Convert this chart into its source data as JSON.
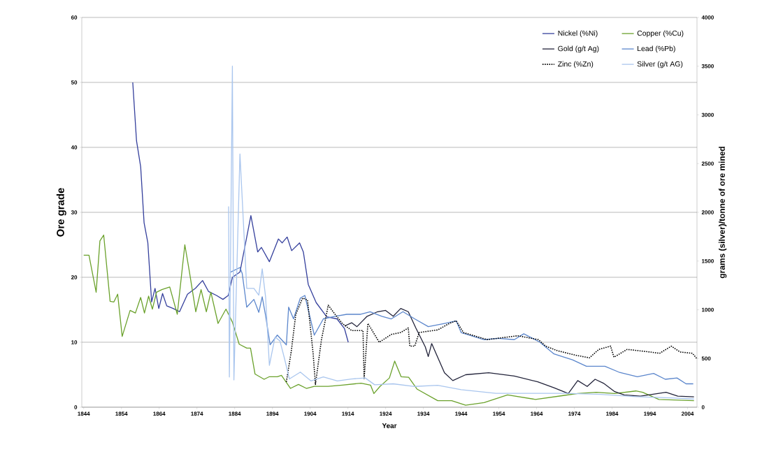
{
  "chart_data": {
    "type": "line",
    "xlabel": "Year",
    "ylabel": "Ore grade",
    "y2label": "grams (silver)/tonne of ore mined",
    "xlim": [
      1843.5,
      2006.5
    ],
    "xticks": [
      1844,
      1854,
      1864,
      1874,
      1884,
      1894,
      1904,
      1914,
      1924,
      1934,
      1944,
      1954,
      1964,
      1974,
      1984,
      1994,
      2004
    ],
    "ylim": [
      0,
      60
    ],
    "yticks": [
      0,
      10,
      20,
      30,
      40,
      50,
      60
    ],
    "y2lim": [
      0,
      4000
    ],
    "y2ticks": [
      0,
      500,
      1000,
      1500,
      2000,
      2500,
      3000,
      3500,
      4000
    ],
    "grid": "y",
    "legend": "top right",
    "line_style": "solid",
    "series": [
      {
        "name": "Nickel (%Ni)",
        "color": "#343f9c",
        "x": [
          1857,
          1858,
          1859.1,
          1860,
          1861,
          1862,
          1862.9,
          1863.9,
          1864.9,
          1866,
          1867.7,
          1869.4,
          1871.5,
          1873.6,
          1875.5,
          1877.1,
          1879.2,
          1880.9,
          1882.3,
          1883.4,
          1885.4,
          1888.3,
          1890.1,
          1891.1,
          1893.2,
          1895.6,
          1896.6,
          1897.9,
          1899.1,
          1901.2,
          1902.2,
          1903.5,
          1905.6,
          1908.4,
          1911.1,
          1913.1,
          1914.1
        ],
        "values": [
          50,
          41,
          37,
          28.4,
          25.3,
          16.2,
          18.3,
          15.2,
          17.5,
          15.6,
          15.2,
          14.7,
          17.4,
          18.3,
          19.5,
          17.8,
          17.2,
          16.6,
          17.2,
          20,
          20.8,
          29.5,
          23.9,
          24.6,
          22.4,
          25.9,
          25.3,
          26.2,
          24.1,
          25.3,
          23.9,
          18.9,
          16.1,
          13.9,
          13.6,
          12.1,
          10
        ]
      },
      {
        "name": "Copper (%Cu)",
        "color": "#6aa12b",
        "x": [
          1844,
          1845.4,
          1847.3,
          1848.3,
          1849.3,
          1851,
          1852,
          1853,
          1854.2,
          1856.3,
          1857.7,
          1859.1,
          1860.1,
          1861.2,
          1862.2,
          1863.3,
          1864.7,
          1866.8,
          1868.8,
          1870.8,
          1872,
          1873.7,
          1875.1,
          1876.5,
          1877.7,
          1879.6,
          1881.7,
          1883.4,
          1885.2,
          1887.2,
          1888.2,
          1889.4,
          1891.8,
          1893.2,
          1895.3,
          1896.4,
          1898.8,
          1900.9,
          1903,
          1905.1,
          1908.8,
          1912.5,
          1917.5,
          1920,
          1920.9,
          1922.5,
          1925,
          1926.4,
          1928.1,
          1930.1,
          1932.3,
          1937.8,
          1941.5,
          1945.2,
          1950.1,
          1956.3,
          1963.7,
          1971.1,
          1974.9,
          1979.8,
          1984.7,
          1990.3,
          1992.1,
          1996.4,
          2005.7
        ],
        "values": [
          23.4,
          23.4,
          17.7,
          25.6,
          26.5,
          16.3,
          16.2,
          17.4,
          10.9,
          14.9,
          14.5,
          16.9,
          14.5,
          17.1,
          15.1,
          17.7,
          18.1,
          18.5,
          14.3,
          25,
          20.9,
          14.7,
          18.1,
          14.7,
          17.7,
          12.9,
          15.1,
          13.1,
          9.7,
          9.1,
          9.1,
          5.1,
          4.3,
          4.7,
          4.7,
          4.9,
          2.9,
          3.5,
          2.9,
          3.2,
          3.2,
          3.4,
          3.7,
          3.4,
          2.1,
          3.2,
          4.5,
          7.1,
          4.7,
          4.6,
          2.8,
          1,
          1,
          0.3,
          0.7,
          1.9,
          1.2,
          1.8,
          2.1,
          2.3,
          2.1,
          2.5,
          2.3,
          1.2,
          1
        ]
      },
      {
        "name": "Gold (g/t Ag)",
        "color": "#22233a",
        "x": [
          1913.1,
          1915,
          1916.4,
          1919.1,
          1921.9,
          1924,
          1926,
          1928,
          1930,
          1932,
          1934.5,
          1935.3,
          1936.2,
          1939.6,
          1941.8,
          1945.2,
          1951.3,
          1958.1,
          1964.3,
          1968.6,
          1972.4,
          1974.9,
          1977.4,
          1979.5,
          1981.7,
          1984.7,
          1987.2,
          1991.5,
          1998.3,
          2001.4,
          2005.7
        ],
        "values": [
          12.5,
          13,
          12.4,
          14,
          14.7,
          14.9,
          14,
          15.2,
          14.7,
          12.2,
          9.3,
          7.8,
          9.8,
          5.3,
          4.1,
          5,
          5.3,
          4.8,
          3.9,
          3,
          2.1,
          4.1,
          3.2,
          4.3,
          3.7,
          2.4,
          1.9,
          1.7,
          2.3,
          1.7,
          1.6
        ]
      },
      {
        "name": "Lead (%Pb)",
        "color": "#5b86cc",
        "x": [
          1882.9,
          1885.4,
          1886,
          1887.2,
          1889.1,
          1890.4,
          1891.3,
          1892.2,
          1893.4,
          1895.3,
          1897.7,
          1898.3,
          1899.6,
          1901.4,
          1902.6,
          1905.1,
          1907.5,
          1910.6,
          1913.7,
          1917.4,
          1919.9,
          1923,
          1925.5,
          1928.6,
          1931.7,
          1935.3,
          1939.6,
          1942.7,
          1944,
          1950.1,
          1953.8,
          1958.1,
          1960.6,
          1964.9,
          1968.6,
          1973.5,
          1977.2,
          1982.1,
          1985.8,
          1990.7,
          1995,
          1998.1,
          2001.2,
          2003.6,
          2005.5
        ],
        "values": [
          20.8,
          21.5,
          20.6,
          15.4,
          16.6,
          14.6,
          17,
          14.1,
          9.6,
          11.1,
          9.6,
          15.4,
          13.6,
          16.8,
          17.2,
          11.1,
          13.6,
          14,
          14.3,
          14.3,
          14.7,
          14,
          13.6,
          14.7,
          13.6,
          12.4,
          12.9,
          13.3,
          11.5,
          10.4,
          10.6,
          10.4,
          11.3,
          10,
          8.2,
          7.3,
          6.3,
          6.3,
          5.4,
          4.7,
          5.2,
          4.3,
          4.5,
          3.6,
          3.6
        ]
      },
      {
        "name": "Zinc (%Zn)",
        "color": "#000000",
        "line_style": "dotted",
        "x": [
          1897.7,
          1899,
          1900.2,
          1902,
          1903.3,
          1904.8,
          1905.4,
          1907,
          1908.8,
          1910.6,
          1912.5,
          1915,
          1918,
          1918.3,
          1919.3,
          1922.3,
          1925.5,
          1928,
          1930,
          1930.4,
          1931.7,
          1932.9,
          1937.8,
          1940.9,
          1942.7,
          1944.6,
          1950.9,
          1959,
          1964.5,
          1966.4,
          1969.5,
          1974.4,
          1978,
          1980.5,
          1983.6,
          1984.5,
          1988,
          1994,
          1996.6,
          1999.7,
          2002,
          2005.3,
          2006.4
        ],
        "values": [
          3.9,
          8.6,
          14.3,
          16.8,
          16.5,
          8.2,
          3.5,
          10.4,
          15.7,
          14.3,
          12.9,
          11.8,
          11.8,
          4.3,
          12.9,
          10,
          11.2,
          11.5,
          12.2,
          9.4,
          9.4,
          11.5,
          11.9,
          12.9,
          13.3,
          11.5,
          10.4,
          11,
          10.4,
          9.4,
          8.7,
          8,
          7.6,
          8.9,
          9.4,
          7.7,
          8.9,
          8.5,
          8.3,
          9.4,
          8.5,
          8.3,
          7.5
        ]
      },
      {
        "name": "Silver (g/t AG)",
        "color": "#aac6ee",
        "axis": "y2",
        "x": [
          1882.4,
          1882.6,
          1883.4,
          1883.8,
          1885.4,
          1887.2,
          1889.1,
          1890.4,
          1891.3,
          1892.2,
          1893.2,
          1894.7,
          1896,
          1897.2,
          1898.5,
          1901.4,
          1904.2,
          1907.5,
          1911.2,
          1914.9,
          1918.6,
          1921.1,
          1926,
          1931.7,
          1937.8,
          1944,
          1953.2,
          1962.5,
          1971.7,
          1981,
          1990.3,
          1999.5,
          2005.7
        ],
        "values": [
          2060,
          310,
          3500,
          280,
          2600,
          1220,
          1220,
          1150,
          1420,
          1130,
          430,
          720,
          680,
          500,
          290,
          360,
          270,
          310,
          270,
          290,
          300,
          230,
          240,
          213,
          225,
          180,
          143,
          143,
          143,
          132,
          108,
          96,
          84
        ]
      }
    ]
  }
}
